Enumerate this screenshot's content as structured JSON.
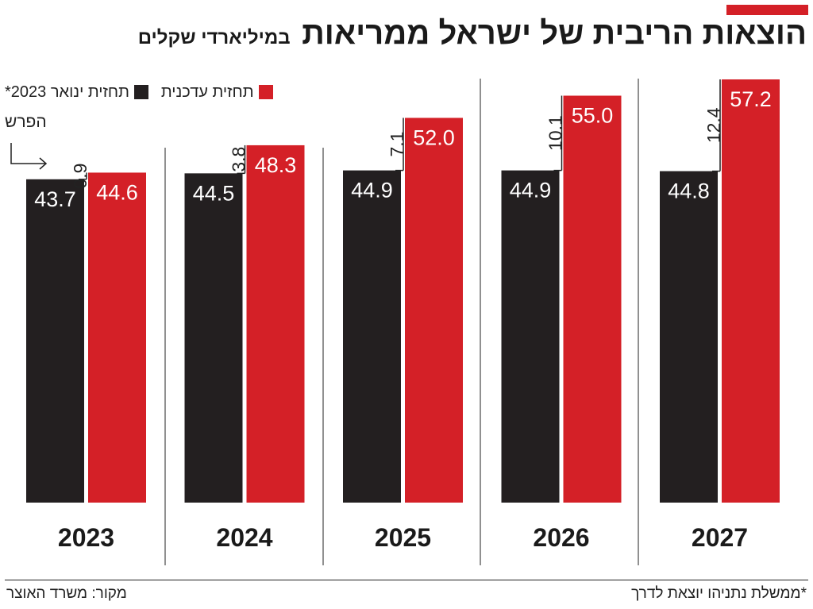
{
  "header": {
    "title": "הוצאות הריבית של ישראל ממריאות",
    "subtitle": "במיליארדי שקלים",
    "accent_color": "#d42027"
  },
  "legend": {
    "updated_label": "תחזית עדכנית",
    "january_label": "תחזית ינואר 2023*",
    "diff_label": "הפרש"
  },
  "footer": {
    "source": "מקור: משרד האוצר",
    "note": "*ממשלת נתניהו יוצאת לדרך"
  },
  "chart_data": {
    "type": "bar",
    "categories": [
      "2023",
      "2024",
      "2025",
      "2026",
      "2027"
    ],
    "series": [
      {
        "name": "תחזית ינואר 2023*",
        "color": "#231f20",
        "values": [
          43.7,
          44.5,
          44.9,
          44.9,
          44.8
        ],
        "labels": [
          "43.7",
          "44.5",
          "44.9",
          "44.9",
          "44.8"
        ]
      },
      {
        "name": "תחזית עדכנית",
        "color": "#d42027",
        "values": [
          44.6,
          48.3,
          52.0,
          55.0,
          57.2
        ],
        "labels": [
          "44.6",
          "48.3",
          "52.0",
          "55.0",
          "57.2"
        ]
      }
    ],
    "differences": [
      0.9,
      3.8,
      7.1,
      10.1,
      12.4
    ],
    "difference_labels": [
      "0.9",
      "3.8",
      "7.1",
      "10.1",
      "12.4"
    ],
    "ylim": [
      0,
      57.2
    ]
  }
}
